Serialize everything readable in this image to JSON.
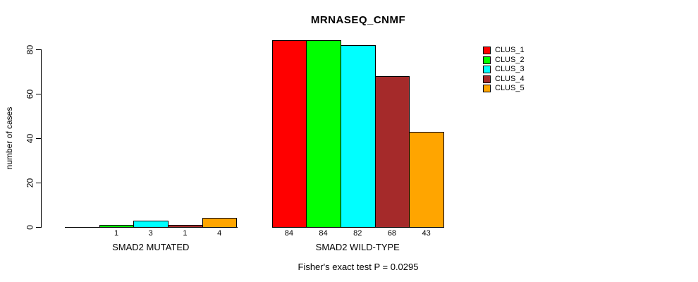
{
  "title": "MRNASEQ_CNMF",
  "chart_data": {
    "type": "bar",
    "title": "MRNASEQ_CNMF",
    "xlabel": "",
    "ylabel": "number of cases",
    "ylim": [
      0,
      87
    ],
    "yticks": [
      0,
      20,
      40,
      60,
      80
    ],
    "grid": false,
    "legend_position": "right",
    "series": [
      "CLUS_1",
      "CLUS_2",
      "CLUS_3",
      "CLUS_4",
      "CLUS_5"
    ],
    "series_colors": [
      "#ff0000",
      "#00ff00",
      "#00ffff",
      "#a52a2a",
      "#ffa500"
    ],
    "categories": [
      "SMAD2 MUTATED",
      "SMAD2 WILD-TYPE"
    ],
    "groups": [
      {
        "label": "SMAD2 MUTATED",
        "values": [
          0,
          1,
          3,
          1,
          4
        ],
        "bar_labels": [
          "",
          "1",
          "3",
          "1",
          "4"
        ]
      },
      {
        "label": "SMAD2 WILD-TYPE",
        "values": [
          84,
          84,
          82,
          68,
          43
        ],
        "bar_labels": [
          "84",
          "84",
          "82",
          "68",
          "43"
        ]
      }
    ],
    "annotation": "Fisher's exact test P = 0.0295"
  },
  "legend": {
    "items": [
      {
        "label": "CLUS_1",
        "color": "#ff0000"
      },
      {
        "label": "CLUS_2",
        "color": "#00ff00"
      },
      {
        "label": "CLUS_3",
        "color": "#00ffff"
      },
      {
        "label": "CLUS_4",
        "color": "#a52a2a"
      },
      {
        "label": "CLUS_5",
        "color": "#ffa500"
      }
    ]
  }
}
